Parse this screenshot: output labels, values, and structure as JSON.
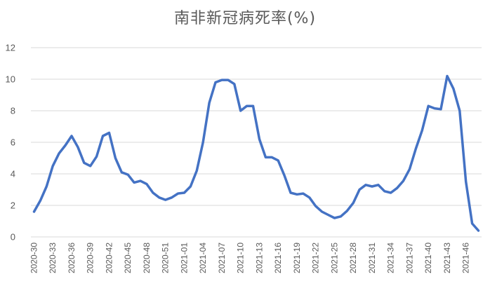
{
  "chart_data": {
    "type": "line",
    "title": "南非新冠病死率(%)",
    "xlabel": "",
    "ylabel": "",
    "ylim": [
      0,
      12
    ],
    "yticks": [
      0,
      2,
      4,
      6,
      8,
      10,
      12
    ],
    "grid": true,
    "x": [
      "2020-30",
      "2020-31",
      "2020-32",
      "2020-33",
      "2020-34",
      "2020-35",
      "2020-36",
      "2020-37",
      "2020-38",
      "2020-39",
      "2020-40",
      "2020-41",
      "2020-42",
      "2020-43",
      "2020-44",
      "2020-45",
      "2020-46",
      "2020-47",
      "2020-48",
      "2020-49",
      "2020-50",
      "2020-51",
      "2020-52",
      "2020-53",
      "2021-01",
      "2021-02",
      "2021-03",
      "2021-04",
      "2021-05",
      "2021-06",
      "2021-07",
      "2021-08",
      "2021-09",
      "2021-10",
      "2021-11",
      "2021-12",
      "2021-13",
      "2021-14",
      "2021-15",
      "2021-16",
      "2021-17",
      "2021-18",
      "2021-19",
      "2021-20",
      "2021-21",
      "2021-22",
      "2021-23",
      "2021-24",
      "2021-25",
      "2021-26",
      "2021-27",
      "2021-28",
      "2021-29",
      "2021-30",
      "2021-31",
      "2021-32",
      "2021-33",
      "2021-34",
      "2021-35",
      "2021-36",
      "2021-37",
      "2021-38",
      "2021-39",
      "2021-40",
      "2021-41",
      "2021-42",
      "2021-43",
      "2021-44",
      "2021-45",
      "2021-46",
      "2021-47",
      "2021-48"
    ],
    "xtick_labels": [
      "2020-30",
      "2020-33",
      "2020-36",
      "2020-39",
      "2020-42",
      "2020-45",
      "2020-48",
      "2020-51",
      "2021-01",
      "2021-04",
      "2021-07",
      "2021-10",
      "2021-13",
      "2021-16",
      "2021-19",
      "2021-22",
      "2021-25",
      "2021-28",
      "2021-31",
      "2021-34",
      "2021-37",
      "2021-40",
      "2021-43",
      "2021-46"
    ],
    "series": [
      {
        "name": "",
        "color": "#4472c4",
        "values": [
          1.6,
          2.3,
          3.2,
          4.5,
          5.3,
          5.8,
          6.4,
          5.7,
          4.7,
          4.5,
          5.1,
          6.4,
          6.6,
          5.0,
          4.1,
          3.95,
          3.45,
          3.55,
          3.35,
          2.8,
          2.5,
          2.35,
          2.5,
          2.75,
          2.8,
          3.2,
          4.2,
          6.0,
          8.5,
          9.8,
          9.95,
          9.95,
          9.7,
          8.0,
          8.3,
          8.3,
          6.2,
          5.05,
          5.05,
          4.85,
          3.9,
          2.8,
          2.7,
          2.75,
          2.5,
          1.95,
          1.6,
          1.4,
          1.2,
          1.3,
          1.65,
          2.15,
          3.0,
          3.3,
          3.2,
          3.3,
          2.9,
          2.8,
          3.1,
          3.55,
          4.3,
          5.6,
          6.75,
          8.3,
          8.15,
          8.1,
          10.2,
          9.4,
          8.0,
          3.5,
          0.85,
          0.4
        ]
      }
    ]
  }
}
